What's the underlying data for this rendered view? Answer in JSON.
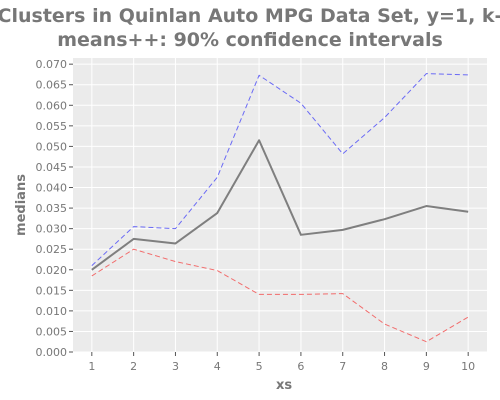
{
  "chart_data": {
    "type": "line",
    "title_lines": [
      "Clusters in Quinlan Auto MPG Data Set, y=1, k-",
      "means++: 90% confidence intervals"
    ],
    "xlabel": "xs",
    "ylabel": "medians",
    "x": [
      1,
      2,
      3,
      4,
      5,
      6,
      7,
      8,
      9,
      10
    ],
    "x_ticks": [
      "1",
      "2",
      "3",
      "4",
      "5",
      "6",
      "7",
      "8",
      "9",
      "10"
    ],
    "y_ticks": [
      "0.000",
      "0.005",
      "0.010",
      "0.015",
      "0.020",
      "0.025",
      "0.030",
      "0.035",
      "0.040",
      "0.045",
      "0.050",
      "0.055",
      "0.060",
      "0.065",
      "0.070"
    ],
    "y_tick_values": [
      0.0,
      0.005,
      0.01,
      0.015,
      0.02,
      0.025,
      0.03,
      0.035,
      0.04,
      0.045,
      0.05,
      0.055,
      0.06,
      0.065,
      0.07
    ],
    "xlim": [
      0.55,
      10.45
    ],
    "ylim": [
      0.0,
      0.0715
    ],
    "grid": true,
    "background": "#ebebeb",
    "grid_color": "#ffffff",
    "series": [
      {
        "key": "median",
        "values": [
          0.02,
          0.0275,
          0.0264,
          0.0338,
          0.0515,
          0.0285,
          0.0297,
          0.0323,
          0.0355,
          0.0341
        ],
        "color": "#7f7f7f",
        "style": "solid"
      },
      {
        "key": "upper",
        "values": [
          0.021,
          0.0305,
          0.03,
          0.0425,
          0.0673,
          0.0605,
          0.0482,
          0.057,
          0.0677,
          0.0674
        ],
        "color": "#6a6af5",
        "style": "dashed"
      },
      {
        "key": "lower",
        "values": [
          0.0185,
          0.025,
          0.022,
          0.0198,
          0.014,
          0.014,
          0.0142,
          0.0068,
          0.0025,
          0.0085
        ],
        "color": "#f26b6b",
        "style": "dashed"
      }
    ]
  }
}
